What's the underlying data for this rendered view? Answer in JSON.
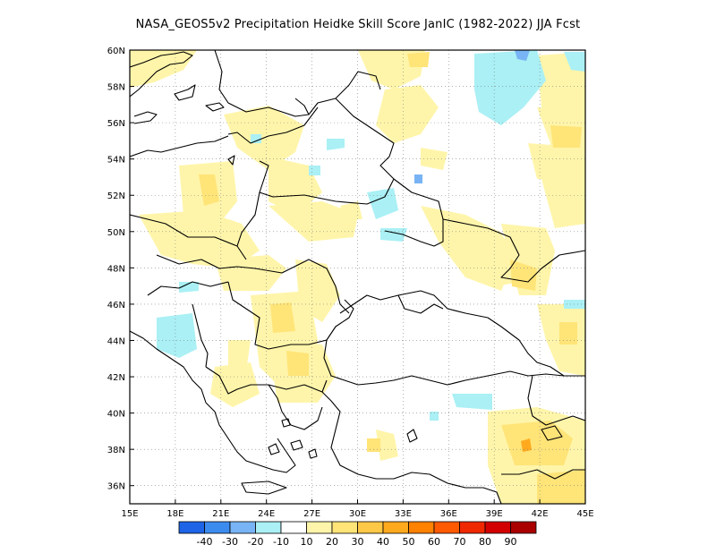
{
  "title": "NASA_GEOS5v2  Precipitation Heidke Skill Score JanIC (1982-2022) JJA Fcst",
  "map": {
    "lon_range": [
      15,
      45
    ],
    "lat_range": [
      35,
      60
    ],
    "lon_ticks": [
      {
        "value": 15,
        "label": "15E"
      },
      {
        "value": 18,
        "label": "18E"
      },
      {
        "value": 21,
        "label": "21E"
      },
      {
        "value": 24,
        "label": "24E"
      },
      {
        "value": 27,
        "label": "27E"
      },
      {
        "value": 30,
        "label": "30E"
      },
      {
        "value": 33,
        "label": "33E"
      },
      {
        "value": 36,
        "label": "36E"
      },
      {
        "value": 39,
        "label": "39E"
      },
      {
        "value": 42,
        "label": "42E"
      },
      {
        "value": 45,
        "label": "45E"
      }
    ],
    "lat_ticks": [
      {
        "value": 36,
        "label": "36N"
      },
      {
        "value": 38,
        "label": "38N"
      },
      {
        "value": 40,
        "label": "40N"
      },
      {
        "value": 42,
        "label": "42N"
      },
      {
        "value": 44,
        "label": "44N"
      },
      {
        "value": 46,
        "label": "46N"
      },
      {
        "value": 48,
        "label": "48N"
      },
      {
        "value": 50,
        "label": "50N"
      },
      {
        "value": 52,
        "label": "52N"
      },
      {
        "value": 54,
        "label": "54N"
      },
      {
        "value": 56,
        "label": "56N"
      },
      {
        "value": 58,
        "label": "58N"
      },
      {
        "value": 60,
        "label": "60N"
      }
    ],
    "grid": true
  },
  "colorbar": {
    "colors": [
      "#1e64e6",
      "#3c8cf0",
      "#78b4f5",
      "#aaf0f5",
      "#ffffff",
      "#fff5aa",
      "#ffe478",
      "#ffc846",
      "#ffaa1e",
      "#ff8200",
      "#ff5a00",
      "#f02800",
      "#d20000",
      "#aa0000"
    ],
    "labels": [
      "-40",
      "-30",
      "-20",
      "-10",
      "10",
      "20",
      "30",
      "40",
      "50",
      "60",
      "70",
      "80",
      "90"
    ]
  },
  "legend_colors": {
    "yellow_light": "#fff5aa",
    "yellow": "#ffe478",
    "orange": "#ffaa1e",
    "cyan": "#aaf0f5",
    "blue_light": "#78b4f5"
  }
}
